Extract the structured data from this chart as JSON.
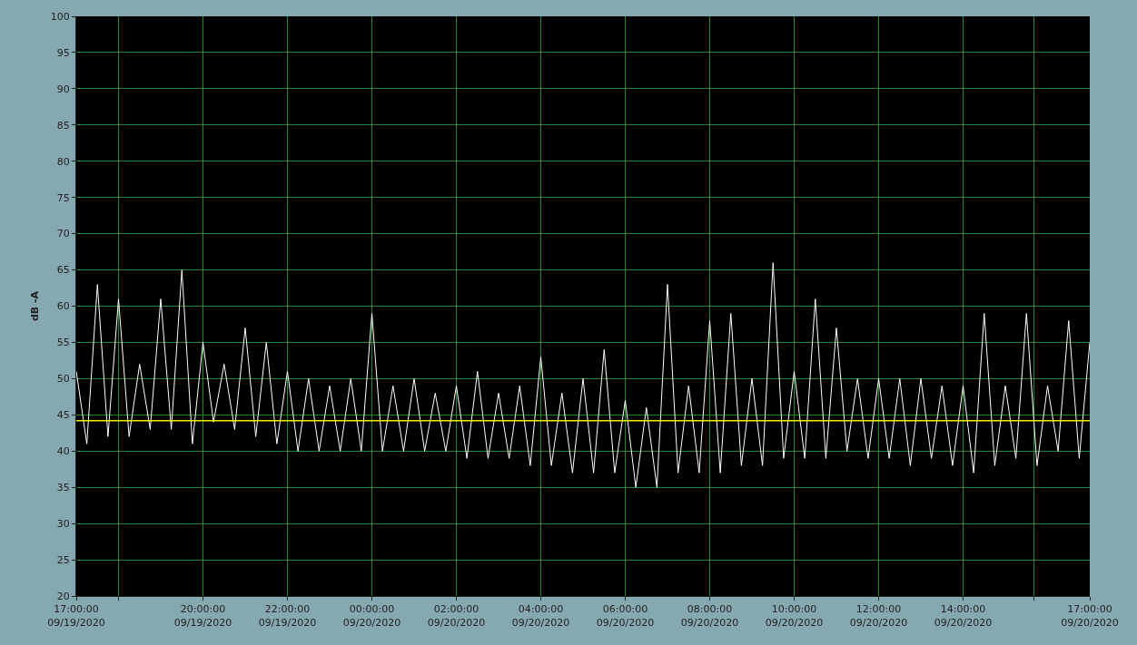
{
  "chart_data": {
    "type": "line",
    "ylabel": "dB -A",
    "x": [
      "2020-09-19T17:00",
      "2020-09-19T17:15",
      "2020-09-19T17:30",
      "2020-09-19T17:45",
      "2020-09-19T18:00",
      "2020-09-19T18:15",
      "2020-09-19T18:30",
      "2020-09-19T18:45",
      "2020-09-19T19:00",
      "2020-09-19T19:15",
      "2020-09-19T19:30",
      "2020-09-19T19:45",
      "2020-09-19T20:00",
      "2020-09-19T20:15",
      "2020-09-19T20:30",
      "2020-09-19T20:45",
      "2020-09-19T21:00",
      "2020-09-19T21:15",
      "2020-09-19T21:30",
      "2020-09-19T21:45",
      "2020-09-19T22:00",
      "2020-09-19T22:15",
      "2020-09-19T22:30",
      "2020-09-19T22:45",
      "2020-09-19T23:00",
      "2020-09-19T23:15",
      "2020-09-19T23:30",
      "2020-09-19T23:45",
      "2020-09-20T00:00",
      "2020-09-20T00:15",
      "2020-09-20T00:30",
      "2020-09-20T00:45",
      "2020-09-20T01:00",
      "2020-09-20T01:15",
      "2020-09-20T01:30",
      "2020-09-20T01:45",
      "2020-09-20T02:00",
      "2020-09-20T02:15",
      "2020-09-20T02:30",
      "2020-09-20T02:45",
      "2020-09-20T03:00",
      "2020-09-20T03:15",
      "2020-09-20T03:30",
      "2020-09-20T03:45",
      "2020-09-20T04:00",
      "2020-09-20T04:15",
      "2020-09-20T04:30",
      "2020-09-20T04:45",
      "2020-09-20T05:00",
      "2020-09-20T05:15",
      "2020-09-20T05:30",
      "2020-09-20T05:45",
      "2020-09-20T06:00",
      "2020-09-20T06:15",
      "2020-09-20T06:30",
      "2020-09-20T06:45",
      "2020-09-20T07:00",
      "2020-09-20T07:15",
      "2020-09-20T07:30",
      "2020-09-20T07:45",
      "2020-09-20T08:00",
      "2020-09-20T08:15",
      "2020-09-20T08:30",
      "2020-09-20T08:45",
      "2020-09-20T09:00",
      "2020-09-20T09:15",
      "2020-09-20T09:30",
      "2020-09-20T09:45",
      "2020-09-20T10:00",
      "2020-09-20T10:15",
      "2020-09-20T10:30",
      "2020-09-20T10:45",
      "2020-09-20T11:00",
      "2020-09-20T11:15",
      "2020-09-20T11:30",
      "2020-09-20T11:45",
      "2020-09-20T12:00",
      "2020-09-20T12:15",
      "2020-09-20T12:30",
      "2020-09-20T12:45",
      "2020-09-20T13:00",
      "2020-09-20T13:15",
      "2020-09-20T13:30",
      "2020-09-20T13:45",
      "2020-09-20T14:00",
      "2020-09-20T14:15",
      "2020-09-20T14:30",
      "2020-09-20T14:45",
      "2020-09-20T15:00",
      "2020-09-20T15:15",
      "2020-09-20T15:30",
      "2020-09-20T15:45",
      "2020-09-20T16:00",
      "2020-09-20T16:15",
      "2020-09-20T16:30",
      "2020-09-20T16:45",
      "2020-09-20T17:00"
    ],
    "series": [
      {
        "color": "#ffffff",
        "values": [
          51,
          41,
          63,
          42,
          61,
          42,
          52,
          43,
          61,
          43,
          65,
          41,
          55,
          44,
          52,
          43,
          57,
          42,
          55,
          41,
          51,
          40,
          50,
          40,
          49,
          40,
          50,
          40,
          59,
          40,
          49,
          40,
          50,
          40,
          48,
          40,
          49,
          39,
          51,
          39,
          48,
          39,
          49,
          38,
          53,
          38,
          48,
          37,
          50,
          37,
          54,
          37,
          47,
          35,
          46,
          35,
          63,
          37,
          49,
          37,
          58,
          37,
          59,
          38,
          50,
          38,
          66,
          39,
          51,
          39,
          61,
          39,
          57,
          40,
          50,
          39,
          50,
          39,
          50,
          38,
          50,
          39,
          49,
          38,
          49,
          37,
          59,
          38,
          49,
          39,
          59,
          38,
          49,
          40,
          58,
          39,
          55
        ]
      }
    ],
    "xlim": [
      "2020-09-19T17:00",
      "2020-09-20T17:00"
    ],
    "xticks": [
      {
        "value": "2020-09-19T17:00",
        "label": "17:00:00\n09/19/2020"
      },
      {
        "value": "2020-09-19T18:00",
        "label": null
      },
      {
        "value": "2020-09-19T20:00",
        "label": "20:00:00\n09/19/2020"
      },
      {
        "value": "2020-09-19T22:00",
        "label": "22:00:00\n09/19/2020"
      },
      {
        "value": "2020-09-20T00:00",
        "label": "00:00:00\n09/20/2020"
      },
      {
        "value": "2020-09-20T02:00",
        "label": "02:00:00\n09/20/2020"
      },
      {
        "value": "2020-09-20T04:00",
        "label": "04:00:00\n09/20/2020"
      },
      {
        "value": "2020-09-20T06:00",
        "label": "06:00:00\n09/20/2020"
      },
      {
        "value": "2020-09-20T08:00",
        "label": "08:00:00\n09/20/2020"
      },
      {
        "value": "2020-09-20T10:00",
        "label": "10:00:00\n09/20/2020"
      },
      {
        "value": "2020-09-20T12:00",
        "label": "12:00:00\n09/20/2020"
      },
      {
        "value": "2020-09-20T14:00",
        "label": "14:00:00\n09/20/2020"
      },
      {
        "value": "2020-09-20T15:40",
        "label": null
      },
      {
        "value": "2020-09-20T17:00",
        "label": "17:00:00\n09/20/2020"
      }
    ],
    "ylim": [
      20,
      100
    ],
    "yticks": [
      20,
      25,
      30,
      35,
      40,
      45,
      50,
      55,
      60,
      65,
      70,
      75,
      80,
      85,
      90,
      95,
      100
    ],
    "ref_lines": [
      {
        "axis": "y",
        "value": 44.2,
        "color": "#f2f200"
      }
    ],
    "grid": true,
    "marker": "none",
    "line_style": "solid"
  }
}
